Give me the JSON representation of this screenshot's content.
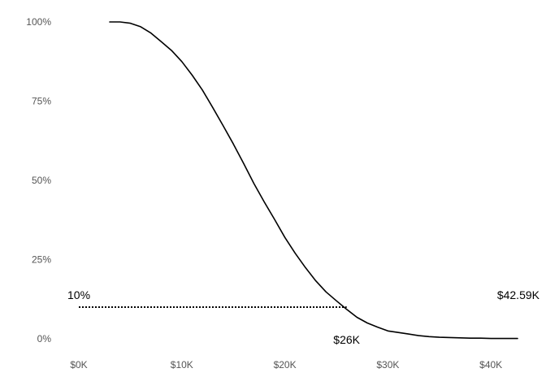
{
  "chart_data": {
    "type": "line",
    "title": "",
    "xlabel": "",
    "ylabel": "",
    "xlim": [
      0,
      42590
    ],
    "ylim": [
      0,
      1
    ],
    "grid": false,
    "x_ticks": [
      {
        "value": 0,
        "label": "$0K"
      },
      {
        "value": 10000,
        "label": "$10K"
      },
      {
        "value": 20000,
        "label": "$20K"
      },
      {
        "value": 30000,
        "label": "$30K"
      },
      {
        "value": 40000,
        "label": "$40K"
      }
    ],
    "y_ticks": [
      {
        "value": 0,
        "label": "0%"
      },
      {
        "value": 0.25,
        "label": "25%"
      },
      {
        "value": 0.5,
        "label": "50%"
      },
      {
        "value": 0.75,
        "label": "75%"
      },
      {
        "value": 1,
        "label": "100%"
      }
    ],
    "series": [
      {
        "name": "",
        "color": "#000000",
        "x": [
          3000,
          4000,
          5000,
          6000,
          7000,
          8000,
          9000,
          10000,
          11000,
          12000,
          13000,
          14000,
          15000,
          16000,
          17000,
          18000,
          19000,
          20000,
          21000,
          22000,
          23000,
          24000,
          25000,
          26000,
          27000,
          28000,
          29000,
          30000,
          31000,
          32000,
          33000,
          34000,
          35000,
          36000,
          37000,
          38000,
          39000,
          40000,
          41000,
          42590
        ],
        "y": [
          1.0,
          1.0,
          0.996,
          0.985,
          0.965,
          0.938,
          0.91,
          0.875,
          0.832,
          0.785,
          0.73,
          0.673,
          0.615,
          0.553,
          0.49,
          0.432,
          0.377,
          0.32,
          0.27,
          0.225,
          0.183,
          0.148,
          0.12,
          0.093,
          0.068,
          0.05,
          0.037,
          0.025,
          0.02,
          0.015,
          0.01,
          0.007,
          0.005,
          0.004,
          0.003,
          0.002,
          0.002,
          0.001,
          0.001,
          0.001
        ]
      }
    ],
    "reference_line": {
      "label": "10%",
      "y": 0.1,
      "x_start": 0,
      "x_end": 26000,
      "color": "#000000",
      "style": "dotted"
    },
    "annotations": [
      {
        "text": "10%",
        "x": 0,
        "y": 0.1
      },
      {
        "text": "$26K",
        "x": 26000,
        "y": 0.1
      },
      {
        "text": "$42.59K",
        "x": 42590,
        "y": 0.1
      }
    ]
  }
}
